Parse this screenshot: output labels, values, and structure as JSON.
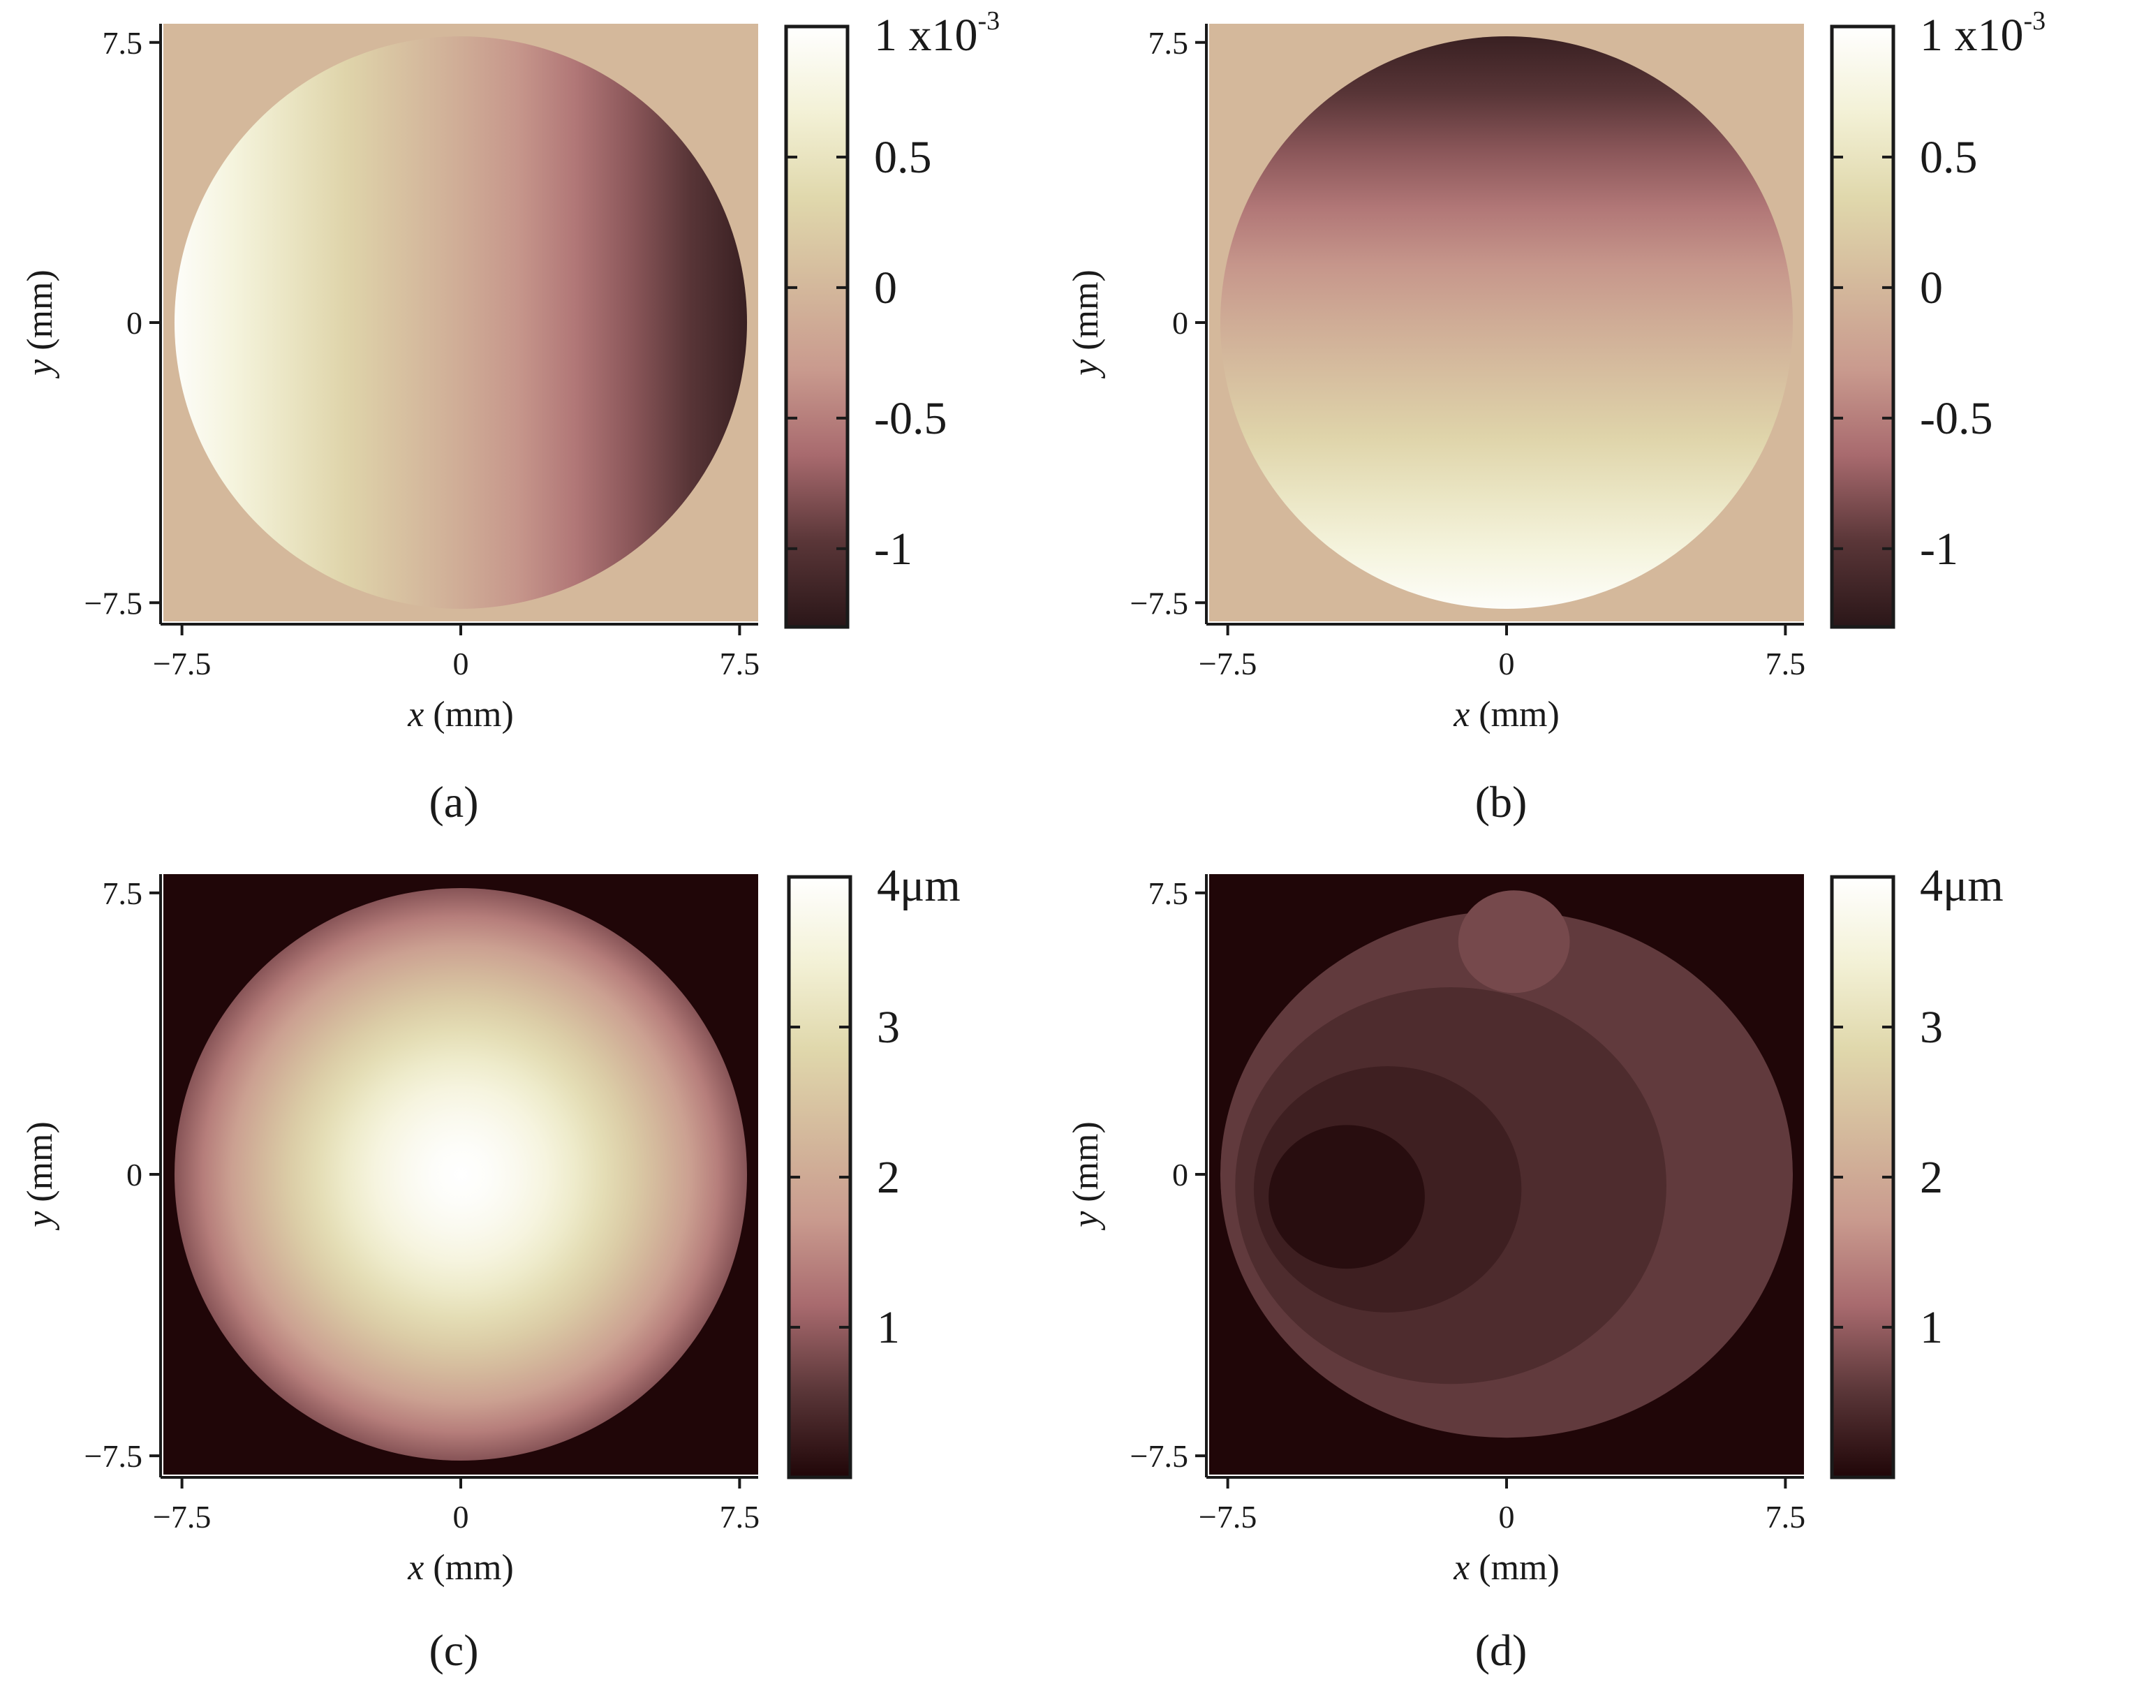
{
  "chart_data": [
    {
      "type": "heatmap",
      "panel_label": "(a)",
      "x_ticks": [
        "−7.5",
        "0",
        "7.5"
      ],
      "y_ticks": [
        "7.5",
        "0",
        "−7.5"
      ],
      "x_tick_values": [
        -7.5,
        0,
        7.5
      ],
      "y_tick_values": [
        7.5,
        0,
        -7.5
      ],
      "xlabel_var": "x",
      "xlabel_unit": " (mm)",
      "ylabel_var": "y",
      "ylabel_unit": " (mm)",
      "xlim": [
        -8,
        8
      ],
      "ylim": [
        -8,
        8
      ],
      "aperture_radius": 7.7,
      "aperture_center": [
        0,
        0
      ],
      "colorbar": {
        "range": [
          -1.3,
          1.0
        ],
        "tick_values": [
          1.0,
          0.5,
          0,
          -0.5,
          -1
        ],
        "tick_labels": [
          "1 x10",
          "0.5",
          "0",
          "-0.5",
          "-1"
        ],
        "exponent": "-3",
        "colors": [
          "#2a1618",
          "#5a3638",
          "#a86a6e",
          "#c99a8e",
          "#d4b99c",
          "#e0d8ac",
          "#f3f1d6",
          "#ffffff"
        ]
      },
      "outside_value": 0,
      "field": {
        "kind": "gradient",
        "direction": "x",
        "at_min_coord": 0.95,
        "at_max_coord": -1.2
      }
    },
    {
      "type": "heatmap",
      "panel_label": "(b)",
      "x_ticks": [
        "−7.5",
        "0",
        "7.5"
      ],
      "y_ticks": [
        "7.5",
        "0",
        "−7.5"
      ],
      "x_tick_values": [
        -7.5,
        0,
        7.5
      ],
      "y_tick_values": [
        7.5,
        0,
        -7.5
      ],
      "xlabel_var": "x",
      "xlabel_unit": " (mm)",
      "ylabel_var": "y",
      "ylabel_unit": " (mm)",
      "xlim": [
        -8,
        8
      ],
      "ylim": [
        -8,
        8
      ],
      "aperture_radius": 7.7,
      "aperture_center": [
        0,
        0
      ],
      "colorbar": {
        "range": [
          -1.3,
          1.0
        ],
        "tick_values": [
          1.0,
          0.5,
          0,
          -0.5,
          -1
        ],
        "tick_labels": [
          "1 x10",
          "0.5",
          "0",
          "-0.5",
          "-1"
        ],
        "exponent": "-3",
        "colors": [
          "#2a1618",
          "#5a3638",
          "#a86a6e",
          "#c99a8e",
          "#d4b99c",
          "#e0d8ac",
          "#f3f1d6",
          "#ffffff"
        ]
      },
      "outside_value": 0,
      "field": {
        "kind": "gradient",
        "direction": "y",
        "at_min_coord": 0.95,
        "at_max_coord": -1.2
      }
    },
    {
      "type": "heatmap",
      "panel_label": "(c)",
      "x_ticks": [
        "−7.5",
        "0",
        "7.5"
      ],
      "y_ticks": [
        "7.5",
        "0",
        "−7.5"
      ],
      "x_tick_values": [
        -7.5,
        0,
        7.5
      ],
      "y_tick_values": [
        7.5,
        0,
        -7.5
      ],
      "xlabel_var": "x",
      "xlabel_unit": " (mm)",
      "ylabel_var": "y",
      "ylabel_unit": " (mm)",
      "xlim": [
        -8,
        8
      ],
      "ylim": [
        -8,
        8
      ],
      "aperture_radius": 7.7,
      "aperture_center": [
        0,
        0
      ],
      "colorbar": {
        "range": [
          0,
          4
        ],
        "tick_values": [
          4,
          3,
          2,
          1
        ],
        "tick_labels": [
          "4μm",
          "3",
          "2",
          "1"
        ],
        "exponent": "",
        "colors": [
          "#200608",
          "#5a3638",
          "#a86a6e",
          "#c99a8e",
          "#d4b99c",
          "#e0d8ac",
          "#f3f1d6",
          "#ffffff"
        ]
      },
      "outside_value": 0,
      "field": {
        "kind": "radial",
        "center": [
          0,
          0
        ],
        "peak": 4.0,
        "edge": 0.9
      }
    },
    {
      "type": "heatmap",
      "panel_label": "(d)",
      "x_ticks": [
        "−7.5",
        "0",
        "7.5"
      ],
      "y_ticks": [
        "7.5",
        "0",
        "−7.5"
      ],
      "x_tick_values": [
        -7.5,
        0,
        7.5
      ],
      "y_tick_values": [
        7.5,
        0,
        -7.5
      ],
      "xlabel_var": "x",
      "xlabel_unit": " (mm)",
      "ylabel_var": "y",
      "ylabel_unit": " (mm)",
      "xlim": [
        -8,
        8
      ],
      "ylim": [
        -8,
        8
      ],
      "aperture_radius": 7.7,
      "aperture_center": [
        0,
        0
      ],
      "colorbar": {
        "range": [
          0,
          4
        ],
        "tick_values": [
          4,
          3,
          2,
          1
        ],
        "tick_labels": [
          "4μm",
          "3",
          "2",
          "1"
        ],
        "exponent": "",
        "colors": [
          "#200608",
          "#5a3638",
          "#a86a6e",
          "#c99a8e",
          "#d4b99c",
          "#e0d8ac",
          "#f3f1d6",
          "#ffffff"
        ]
      },
      "outside_value": 0,
      "field": {
        "kind": "levels",
        "levels": [
          {
            "value": 0.62,
            "cx": 0,
            "cy": 0,
            "r": 7.7
          },
          {
            "value": 0.45,
            "cx": -1.5,
            "cy": -0.3,
            "r": 5.8
          },
          {
            "value": 0.3,
            "cx": -3.2,
            "cy": -0.4,
            "r": 3.6
          },
          {
            "value": 0.08,
            "cx": -4.3,
            "cy": -0.6,
            "r": 2.1
          },
          {
            "value": 0.78,
            "cx": 0.2,
            "cy": 6.2,
            "r": 1.5
          }
        ]
      }
    }
  ]
}
